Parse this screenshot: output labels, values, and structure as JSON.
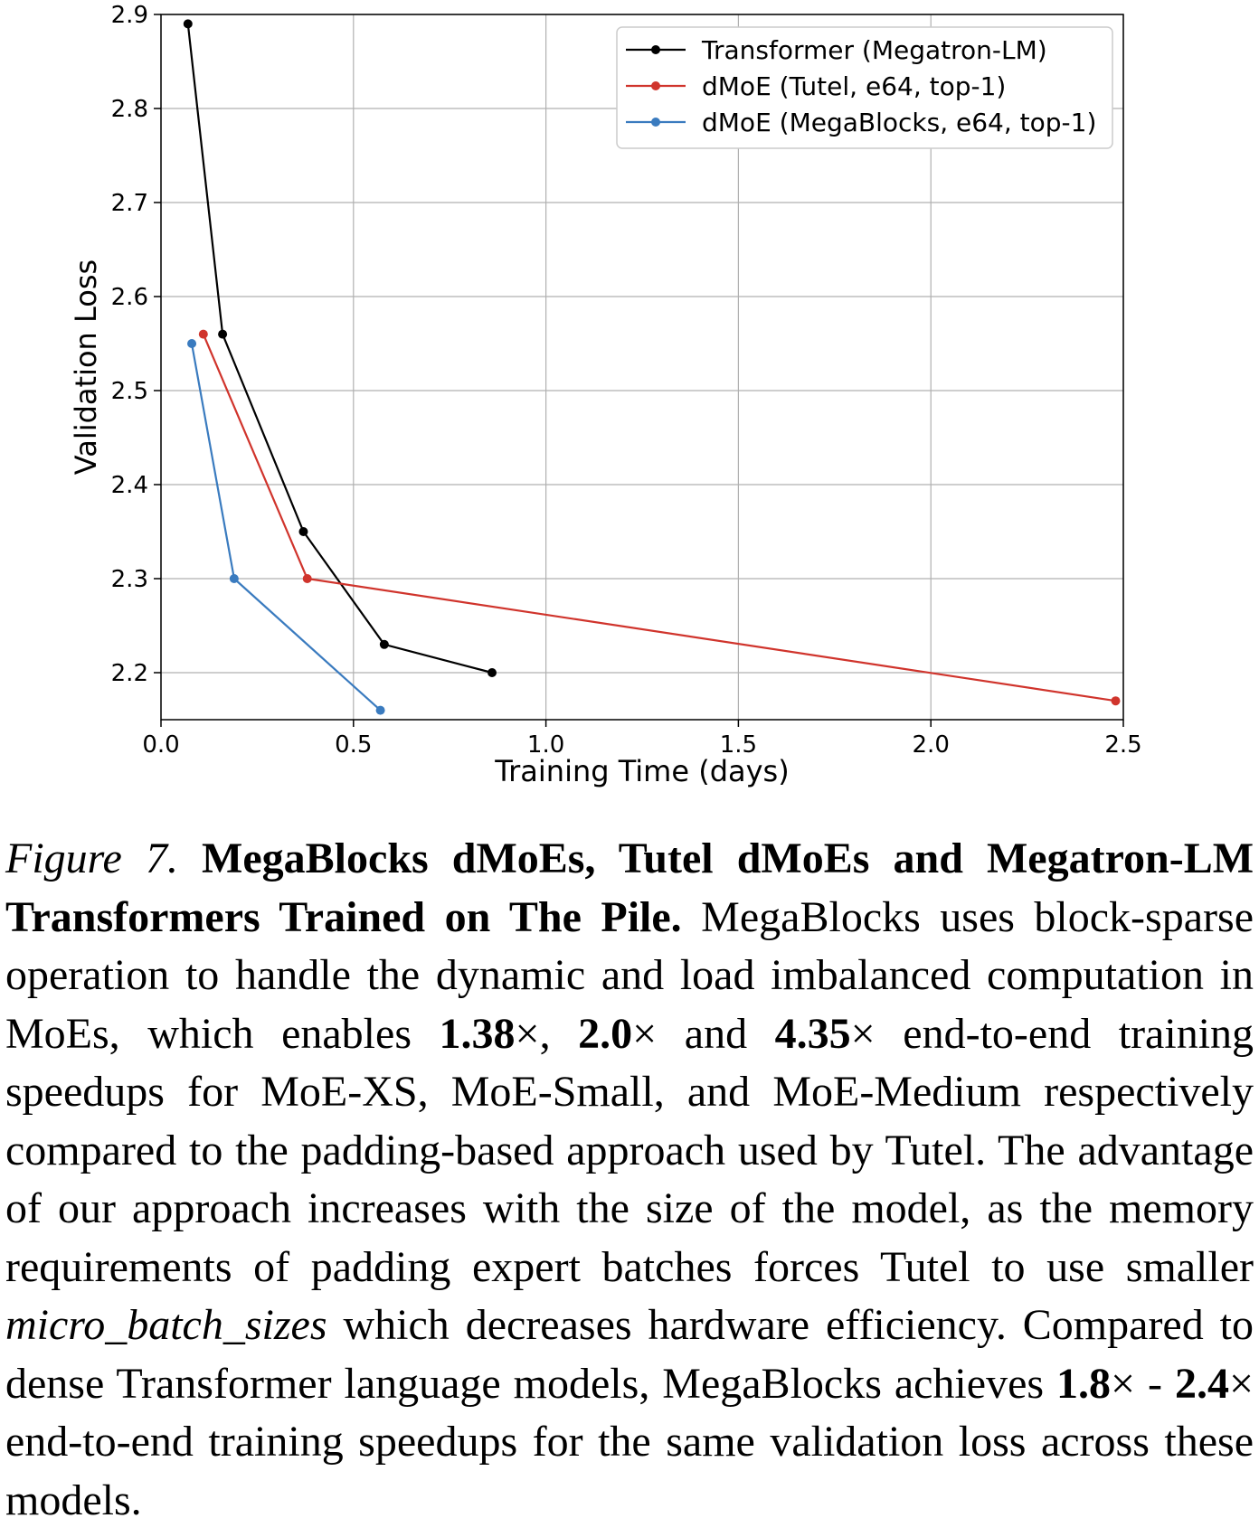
{
  "chart_data": {
    "type": "line",
    "xlabel": "Training Time (days)",
    "ylabel": "Validation Loss",
    "xlim": [
      0.0,
      2.5
    ],
    "ylim": [
      2.15,
      2.9
    ],
    "xticks": [
      "0.0",
      "0.5",
      "1.0",
      "1.5",
      "2.0",
      "2.5"
    ],
    "yticks": [
      "2.2",
      "2.3",
      "2.4",
      "2.5",
      "2.6",
      "2.7",
      "2.8",
      "2.9"
    ],
    "grid": true,
    "legend_position": "top-right",
    "series": [
      {
        "name": "Transformer (Megatron-LM)",
        "color": "#000000",
        "points": [
          [
            0.07,
            2.89
          ],
          [
            0.16,
            2.56
          ],
          [
            0.37,
            2.35
          ],
          [
            0.58,
            2.23
          ],
          [
            0.86,
            2.2
          ]
        ]
      },
      {
        "name": "dMoE (Tutel, e64, top-1)",
        "color": "#d0342c",
        "points": [
          [
            0.11,
            2.56
          ],
          [
            0.38,
            2.3
          ],
          [
            2.48,
            2.17
          ]
        ]
      },
      {
        "name": "dMoE (MegaBlocks, e64, top-1)",
        "color": "#3a7bbf",
        "points": [
          [
            0.08,
            2.55
          ],
          [
            0.19,
            2.3
          ],
          [
            0.57,
            2.16
          ]
        ]
      }
    ]
  },
  "caption": {
    "figure_label": "Figure 7.",
    "title": "MegaBlocks dMoEs, Tutel dMoEs and Megatron-LM Transformers Trained on The Pile.",
    "body_1": "MegaBlocks uses block-sparse operation to handle the dynamic and load imbalanced computation in MoEs, which enables",
    "speedup_xs": "1.38",
    "speedup_small": "2.0",
    "speedup_medium": "4.35",
    "times_1": "×",
    "comma_1": ",",
    "times_2": "×",
    "and_1": "and",
    "times_3": "×",
    "body_2": "end-to-end training speedups for MoE-XS, MoE-Small, and MoE-Medium respectively compared to the padding-based approach used by Tutel. The advantage of our approach increases with the size of the model, as the memory requirements of padding expert batches forces Tutel to use smaller",
    "micro_batch": "micro_batch_sizes",
    "body_3": "which decreases hardware efficiency. Compared to dense Transformer language models, MegaBlocks achieves",
    "speedup_low": "1.8",
    "times_4": "×",
    "dash": "-",
    "speedup_high": "2.4",
    "times_5": "×",
    "body_4": "end-to-end training speedups for the same validation loss across these models."
  }
}
